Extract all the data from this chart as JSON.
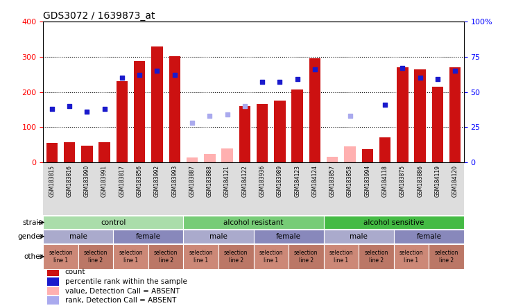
{
  "title": "GDS3072 / 1639873_at",
  "samples": [
    "GSM183815",
    "GSM183816",
    "GSM183990",
    "GSM183991",
    "GSM183817",
    "GSM183856",
    "GSM183992",
    "GSM183993",
    "GSM183887",
    "GSM183888",
    "GSM184121",
    "GSM184122",
    "GSM183936",
    "GSM183989",
    "GSM184123",
    "GSM184124",
    "GSM183857",
    "GSM183858",
    "GSM183994",
    "GSM184118",
    "GSM183875",
    "GSM183886",
    "GSM184119",
    "GSM184120"
  ],
  "count_values": [
    55,
    58,
    47,
    58,
    230,
    287,
    330,
    302,
    15,
    25,
    40,
    160,
    165,
    175,
    207,
    295,
    17,
    45,
    38,
    72,
    270,
    265,
    215,
    270
  ],
  "count_absent": [
    false,
    false,
    false,
    false,
    false,
    false,
    false,
    false,
    true,
    true,
    true,
    false,
    false,
    false,
    false,
    false,
    true,
    true,
    false,
    false,
    false,
    false,
    false,
    false
  ],
  "percentile_values": [
    38,
    40,
    36,
    38,
    60,
    62,
    65,
    62,
    28,
    33,
    34,
    40,
    57,
    57,
    59,
    66,
    null,
    33,
    null,
    41,
    67,
    60,
    59,
    65
  ],
  "percentile_absent": [
    false,
    false,
    false,
    false,
    false,
    false,
    false,
    false,
    true,
    true,
    true,
    true,
    false,
    false,
    false,
    false,
    true,
    true,
    false,
    false,
    false,
    false,
    false,
    false
  ],
  "ylim_left": [
    0,
    400
  ],
  "ylim_right": [
    0,
    100
  ],
  "yticks_left": [
    0,
    100,
    200,
    300,
    400
  ],
  "yticks_right": [
    0,
    25,
    50,
    75,
    100
  ],
  "bar_color_present": "#cc1111",
  "bar_color_absent": "#ffb0b0",
  "dot_color_present": "#1a1acc",
  "dot_color_absent": "#aaaaee",
  "bg_color": "#ffffff",
  "plot_bg": "#ffffff",
  "strain_groups": [
    {
      "label": "control",
      "start": 0,
      "end": 8,
      "color": "#aaddaa"
    },
    {
      "label": "alcohol resistant",
      "start": 8,
      "end": 16,
      "color": "#77cc77"
    },
    {
      "label": "alcohol sensitive",
      "start": 16,
      "end": 24,
      "color": "#44bb44"
    }
  ],
  "gender_groups": [
    {
      "label": "male",
      "start": 0,
      "end": 4,
      "color": "#aaaacc"
    },
    {
      "label": "female",
      "start": 4,
      "end": 8,
      "color": "#8888bb"
    },
    {
      "label": "male",
      "start": 8,
      "end": 12,
      "color": "#aaaacc"
    },
    {
      "label": "female",
      "start": 12,
      "end": 16,
      "color": "#8888bb"
    },
    {
      "label": "male",
      "start": 16,
      "end": 20,
      "color": "#aaaacc"
    },
    {
      "label": "female",
      "start": 20,
      "end": 24,
      "color": "#8888bb"
    }
  ],
  "other_groups": [
    {
      "label": "selection\nline 1",
      "start": 0,
      "end": 2,
      "color": "#cc8877"
    },
    {
      "label": "selection\nline 2",
      "start": 2,
      "end": 4,
      "color": "#bb7766"
    },
    {
      "label": "selection\nline 1",
      "start": 4,
      "end": 6,
      "color": "#cc8877"
    },
    {
      "label": "selection\nline 2",
      "start": 6,
      "end": 8,
      "color": "#bb7766"
    },
    {
      "label": "selection\nline 1",
      "start": 8,
      "end": 10,
      "color": "#cc8877"
    },
    {
      "label": "selection\nline 2",
      "start": 10,
      "end": 12,
      "color": "#bb7766"
    },
    {
      "label": "selection\nline 1",
      "start": 12,
      "end": 14,
      "color": "#cc8877"
    },
    {
      "label": "selection\nline 2",
      "start": 14,
      "end": 16,
      "color": "#bb7766"
    },
    {
      "label": "selection\nline 1",
      "start": 16,
      "end": 18,
      "color": "#cc8877"
    },
    {
      "label": "selection\nline 2",
      "start": 18,
      "end": 20,
      "color": "#bb7766"
    },
    {
      "label": "selection\nline 1",
      "start": 20,
      "end": 22,
      "color": "#cc8877"
    },
    {
      "label": "selection\nline 2",
      "start": 22,
      "end": 24,
      "color": "#bb7766"
    }
  ],
  "legend_items": [
    {
      "label": "count",
      "color": "#cc1111"
    },
    {
      "label": "percentile rank within the sample",
      "color": "#1a1acc"
    },
    {
      "label": "value, Detection Call = ABSENT",
      "color": "#ffb0b0"
    },
    {
      "label": "rank, Detection Call = ABSENT",
      "color": "#aaaaee"
    }
  ]
}
